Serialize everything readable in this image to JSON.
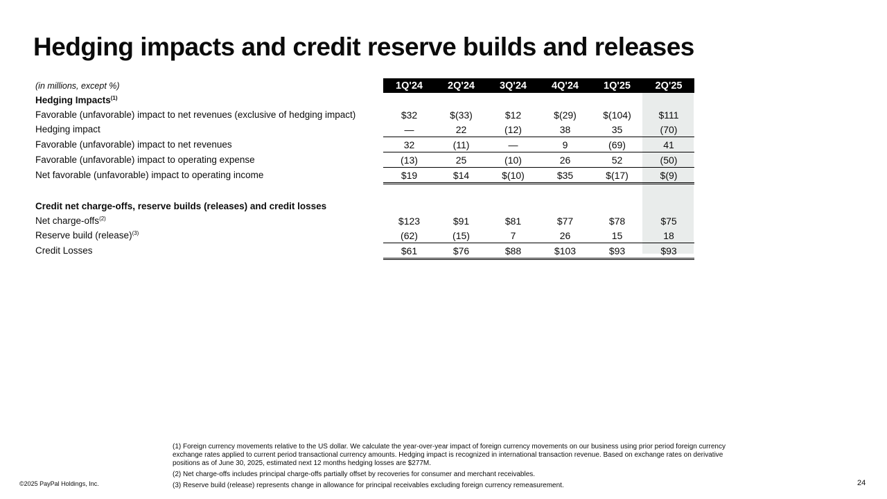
{
  "title": "Hedging impacts and credit reserve builds and releases",
  "units_note": "(in millions, except %)",
  "columns": [
    "1Q'24",
    "2Q'24",
    "3Q'24",
    "4Q'24",
    "1Q'25",
    "2Q'25"
  ],
  "hedging": {
    "heading": "Hedging Impacts",
    "heading_note": "(1)",
    "rows": [
      {
        "label": "Favorable (unfavorable) impact to net revenues (exclusive of hedging impact)",
        "values": [
          "$32",
          "$(33)",
          "$12",
          "$(29)",
          "$(104)",
          "$111"
        ]
      },
      {
        "label": "Hedging impact",
        "values": [
          "—",
          "22",
          "(12)",
          "38",
          "35",
          "(70)"
        ]
      },
      {
        "label": "Favorable (unfavorable) impact to net revenues",
        "values": [
          "32",
          "(11)",
          "—",
          "9",
          "(69)",
          "41"
        ]
      },
      {
        "label": "Favorable (unfavorable) impact to operating expense",
        "values": [
          "(13)",
          "25",
          "(10)",
          "26",
          "52",
          "(50)"
        ]
      },
      {
        "label": "Net favorable (unfavorable) impact to operating income",
        "values": [
          "$19",
          "$14",
          "$(10)",
          "$35",
          "$(17)",
          "$(9)"
        ]
      }
    ]
  },
  "credit": {
    "heading": "Credit net charge-offs, reserve builds (releases) and credit losses",
    "rows": [
      {
        "label": "Net charge-offs",
        "note": "(2)",
        "values": [
          "$123",
          "$91",
          "$81",
          "$77",
          "$78",
          "$75"
        ]
      },
      {
        "label": "Reserve build (release)",
        "note": "(3)",
        "values": [
          "(62)",
          "(15)",
          "7",
          "26",
          "15",
          "18"
        ]
      },
      {
        "label": "Credit Losses",
        "note": "",
        "values": [
          "$61",
          "$76",
          "$88",
          "$103",
          "$93",
          "$93"
        ]
      }
    ]
  },
  "footnotes": [
    "(1) Foreign currency movements relative to the US dollar. We calculate the year-over-year impact of foreign currency movements on our business using prior period foreign currency exchange rates applied to current period transactional currency amounts. Hedging impact is recognized in international transaction revenue. Based on exchange rates on derivative positions as of June 30, 2025, estimated next 12 months hedging losses are $277M.",
    "(2) Net charge-offs includes principal charge-offs partially offset by recoveries for consumer and merchant receivables.",
    "(3) Reserve build (release) represents change in allowance for principal receivables excluding foreign currency remeasurement."
  ],
  "copyright": "©2025 PayPal Holdings, Inc.",
  "page_number": "24"
}
